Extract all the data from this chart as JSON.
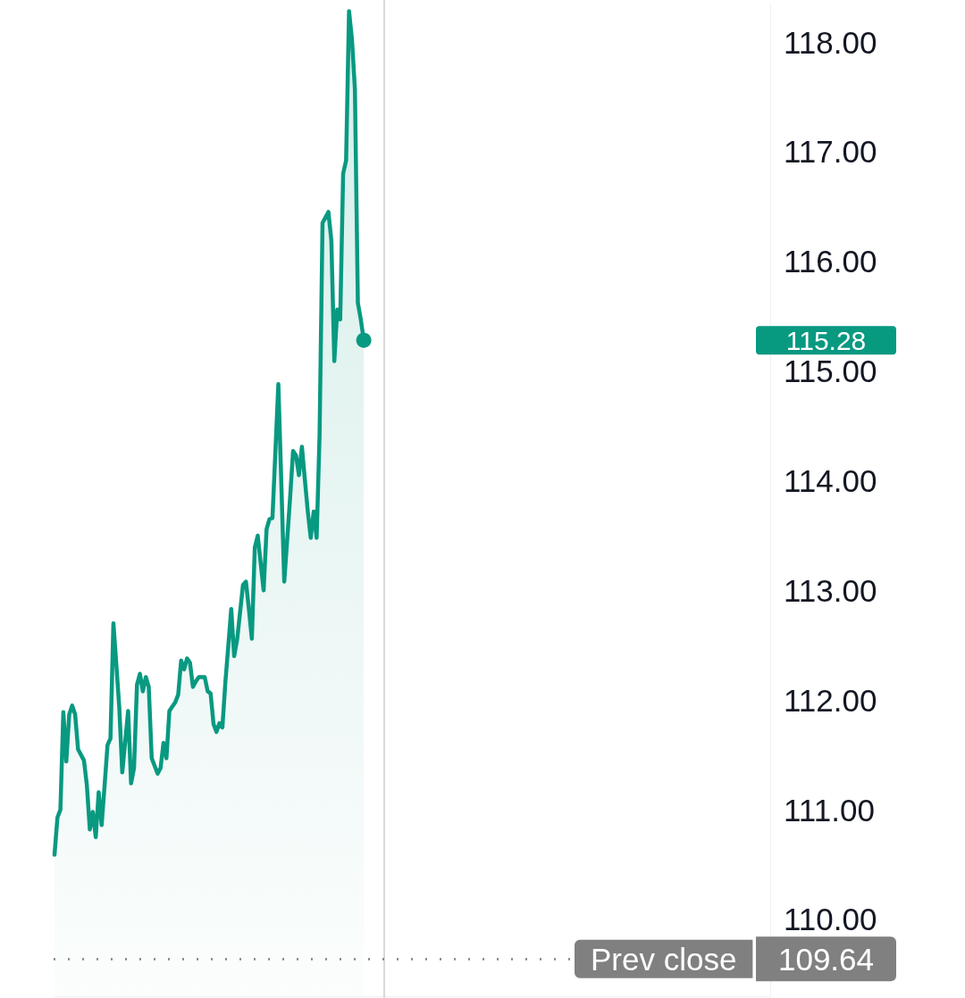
{
  "chart_data": {
    "type": "area",
    "color": "#089981",
    "marker": "none",
    "line_style": "solid",
    "tick_labels": "y",
    "categories": [
      null,
      null,
      null,
      null,
      null,
      null,
      null,
      null,
      null,
      null,
      null,
      null,
      null,
      null,
      null,
      null,
      null,
      null,
      null,
      null,
      null,
      null,
      null,
      null,
      null,
      null,
      null,
      null,
      null,
      null,
      null,
      null,
      null,
      null,
      null,
      null,
      null,
      null,
      null,
      null,
      null,
      null,
      null,
      null,
      null,
      null,
      null,
      null,
      null,
      null,
      null,
      null,
      null,
      null,
      null,
      null,
      null,
      null,
      null,
      null,
      null,
      null,
      null,
      null,
      null,
      null,
      null,
      null,
      null,
      null,
      null,
      null,
      null,
      null,
      null,
      null,
      null,
      null,
      null,
      null,
      null,
      null,
      null,
      null,
      null,
      null,
      null,
      null,
      null,
      null,
      null,
      null,
      null,
      null,
      null,
      null,
      null,
      null,
      null,
      null,
      null,
      null,
      null,
      null,
      null,
      null,
      null,
      null,
      null,
      null,
      null,
      null,
      null,
      null,
      null,
      null,
      null,
      null,
      null,
      null,
      null,
      null,
      null,
      null,
      null,
      null,
      null,
      null,
      null,
      null,
      null,
      null,
      null,
      null,
      null,
      null,
      null,
      null,
      null,
      null,
      null,
      null,
      null,
      null,
      null,
      null,
      null,
      null,
      null,
      null,
      null,
      null,
      null,
      null,
      null,
      null,
      null,
      null,
      null,
      null,
      null,
      null,
      null,
      null,
      null,
      null,
      null,
      null,
      null,
      null,
      null,
      null,
      null,
      null,
      null,
      null,
      null,
      null,
      null,
      null,
      null,
      null,
      null,
      null,
      null,
      null,
      null,
      null,
      null,
      null,
      null,
      null,
      null,
      null,
      null,
      null,
      null,
      null,
      null,
      null,
      null,
      null,
      null,
      null,
      null,
      null,
      null,
      null,
      null,
      null,
      null,
      null,
      null,
      null,
      null,
      null,
      null,
      null,
      null,
      null,
      null,
      null,
      null,
      null,
      null,
      null,
      null,
      null,
      null,
      null,
      null,
      null,
      null,
      null,
      null,
      null,
      null,
      null,
      null,
      null,
      null,
      null,
      null,
      null
    ],
    "values": [
      110.59,
      110.93,
      111,
      111.89,
      111.44,
      111.87,
      111.95,
      111.87,
      111.55,
      111.5,
      111.45,
      111.22,
      110.82,
      110.98,
      110.75,
      111.16,
      110.86,
      111.22,
      111.59,
      111.65,
      112.7,
      112.32,
      111.93,
      111.34,
      111.62,
      111.9,
      111.24,
      111.38,
      112.14,
      112.24,
      112.08,
      112.21,
      112.12,
      111.47,
      111.4,
      111.33,
      111.38,
      111.61,
      111.47,
      111.9,
      111.94,
      111.98,
      112.05,
      112.36,
      112.28,
      112.38,
      112.34,
      112.12,
      112.17,
      112.21,
      112.21,
      112.21,
      112.08,
      112.06,
      111.78,
      111.71,
      111.79,
      111.75,
      112.16,
      112.49,
      112.83,
      112.4,
      112.55,
      112.8,
      113.05,
      113.08,
      112.83,
      112.56,
      113.39,
      113.5,
      113.25,
      113,
      113.56,
      113.65,
      113.66,
      114.27,
      114.88,
      113.99,
      113.08,
      113.46,
      113.85,
      114.27,
      114.23,
      114.05,
      114.31,
      114.01,
      113.72,
      113.48,
      113.72,
      113.48,
      114.42,
      116.35,
      116.4,
      116.45,
      116.19,
      115.09,
      115.56,
      115.47,
      116.8,
      116.92,
      118.28,
      118.02,
      117.57,
      115.62,
      115.47,
      115.28,
      null,
      null,
      null,
      null,
      null,
      null,
      null,
      null,
      null,
      null,
      null,
      null,
      null,
      null,
      null,
      null,
      null,
      null,
      null,
      null,
      null,
      null,
      null,
      null,
      null,
      null,
      null,
      null,
      null,
      null,
      null,
      null,
      null,
      null,
      null,
      null,
      null,
      null,
      null,
      null,
      null,
      null,
      null,
      null,
      null,
      null,
      null,
      null,
      null,
      null,
      null,
      null,
      null,
      null,
      null,
      null,
      null,
      null,
      null,
      null,
      null,
      null,
      null,
      null,
      null,
      null,
      null,
      null,
      null,
      null,
      null,
      null,
      null,
      null,
      null,
      null,
      null,
      null,
      null,
      null,
      null,
      null,
      null,
      null,
      null,
      null,
      null,
      null,
      null,
      null,
      null,
      null,
      null,
      null,
      null,
      null,
      null,
      null,
      null,
      null,
      null,
      null,
      null,
      null,
      null,
      null,
      null,
      null,
      null,
      null,
      null,
      null,
      null,
      null,
      null,
      null,
      null,
      null,
      null,
      null,
      null,
      null,
      null,
      null,
      null,
      null,
      null,
      null,
      null,
      null,
      null,
      null,
      null,
      null,
      null,
      null,
      null,
      null
    ],
    "ylim": [
      109.3,
      118.35
    ],
    "yticks": [
      {
        "value": 110,
        "label": "110.00"
      },
      {
        "value": 111,
        "label": "111.00"
      },
      {
        "value": 112,
        "label": "112.00"
      },
      {
        "value": 113,
        "label": "113.00"
      },
      {
        "value": 114,
        "label": "114.00"
      },
      {
        "value": 115,
        "label": "115.00"
      },
      {
        "value": 116,
        "label": "116.00"
      },
      {
        "value": 117,
        "label": "117.00"
      },
      {
        "value": 118,
        "label": "118.00"
      }
    ],
    "ref_lines": [
      {
        "axis": "y",
        "value": 109.64,
        "label": "Prev close",
        "color": "#808080",
        "line_style": "dotted"
      }
    ],
    "annotations": [
      "115.28",
      "109.64"
    ]
  }
}
